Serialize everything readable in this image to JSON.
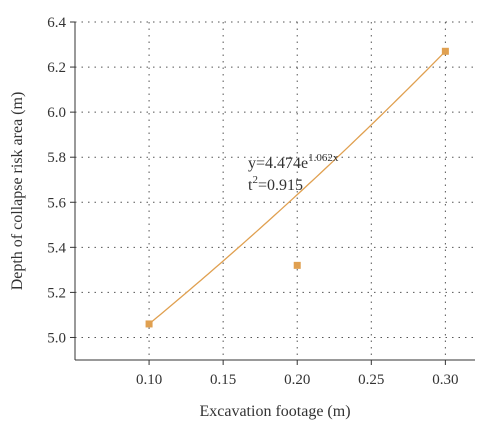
{
  "chart_data": {
    "type": "scatter",
    "title": "",
    "xlabel": "Excavation footage (m)",
    "ylabel": "Depth of collapse risk area (m)",
    "xlim": [
      0.05,
      0.32
    ],
    "ylim": [
      4.9,
      6.4
    ],
    "x_ticks": [
      "0.10",
      "0.15",
      "0.20",
      "0.25",
      "0.30"
    ],
    "y_ticks": [
      "5.0",
      "5.2",
      "5.4",
      "5.6",
      "5.8",
      "6.0",
      "6.2",
      "6.4"
    ],
    "grid": true,
    "grid_style": "dotted",
    "series": [
      {
        "marker": "square",
        "color": "#E0A050",
        "x": [
          0.1,
          0.2,
          0.3
        ],
        "y": [
          5.06,
          5.32,
          6.27
        ]
      }
    ],
    "fit": {
      "model": "exponential",
      "a": 4.474,
      "b": 1.062,
      "color": "#E0A050"
    },
    "annotation": {
      "equation_base": "y=4.474e",
      "equation_exponent": "1.062x",
      "r_base": "t",
      "r_exponent": "2",
      "r_value": "=0.915"
    }
  }
}
